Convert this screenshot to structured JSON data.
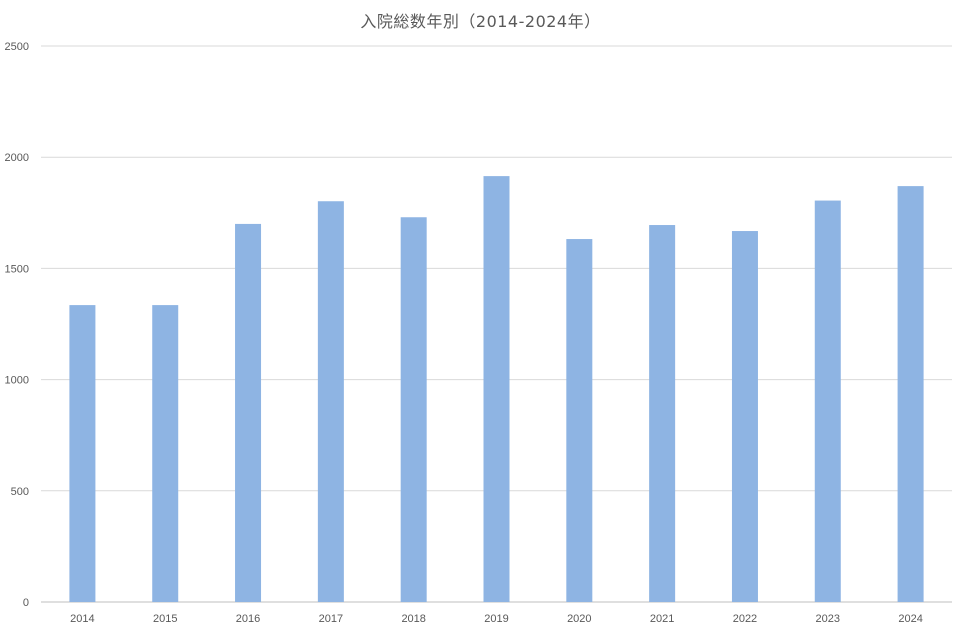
{
  "chart_data": {
    "type": "bar",
    "title": "入院総数年別（2014-2024年）",
    "xlabel": "",
    "ylabel": "",
    "categories": [
      "2014",
      "2015",
      "2016",
      "2017",
      "2018",
      "2019",
      "2020",
      "2021",
      "2022",
      "2023",
      "2024"
    ],
    "series": [
      {
        "values": [
          1335,
          1335,
          1700,
          1802,
          1730,
          1915,
          1632,
          1695,
          1668,
          1805,
          1870
        ]
      }
    ],
    "ylim": [
      0,
      2500
    ],
    "yticks": [
      "0",
      "500",
      "1000",
      "1500",
      "2000",
      "2500"
    ],
    "grid": true,
    "legend": "none",
    "colors": {
      "bar": "#8eb4e3",
      "grid": "#d9d9d9",
      "axis": "#bfbfbf",
      "text": "#595959"
    }
  }
}
